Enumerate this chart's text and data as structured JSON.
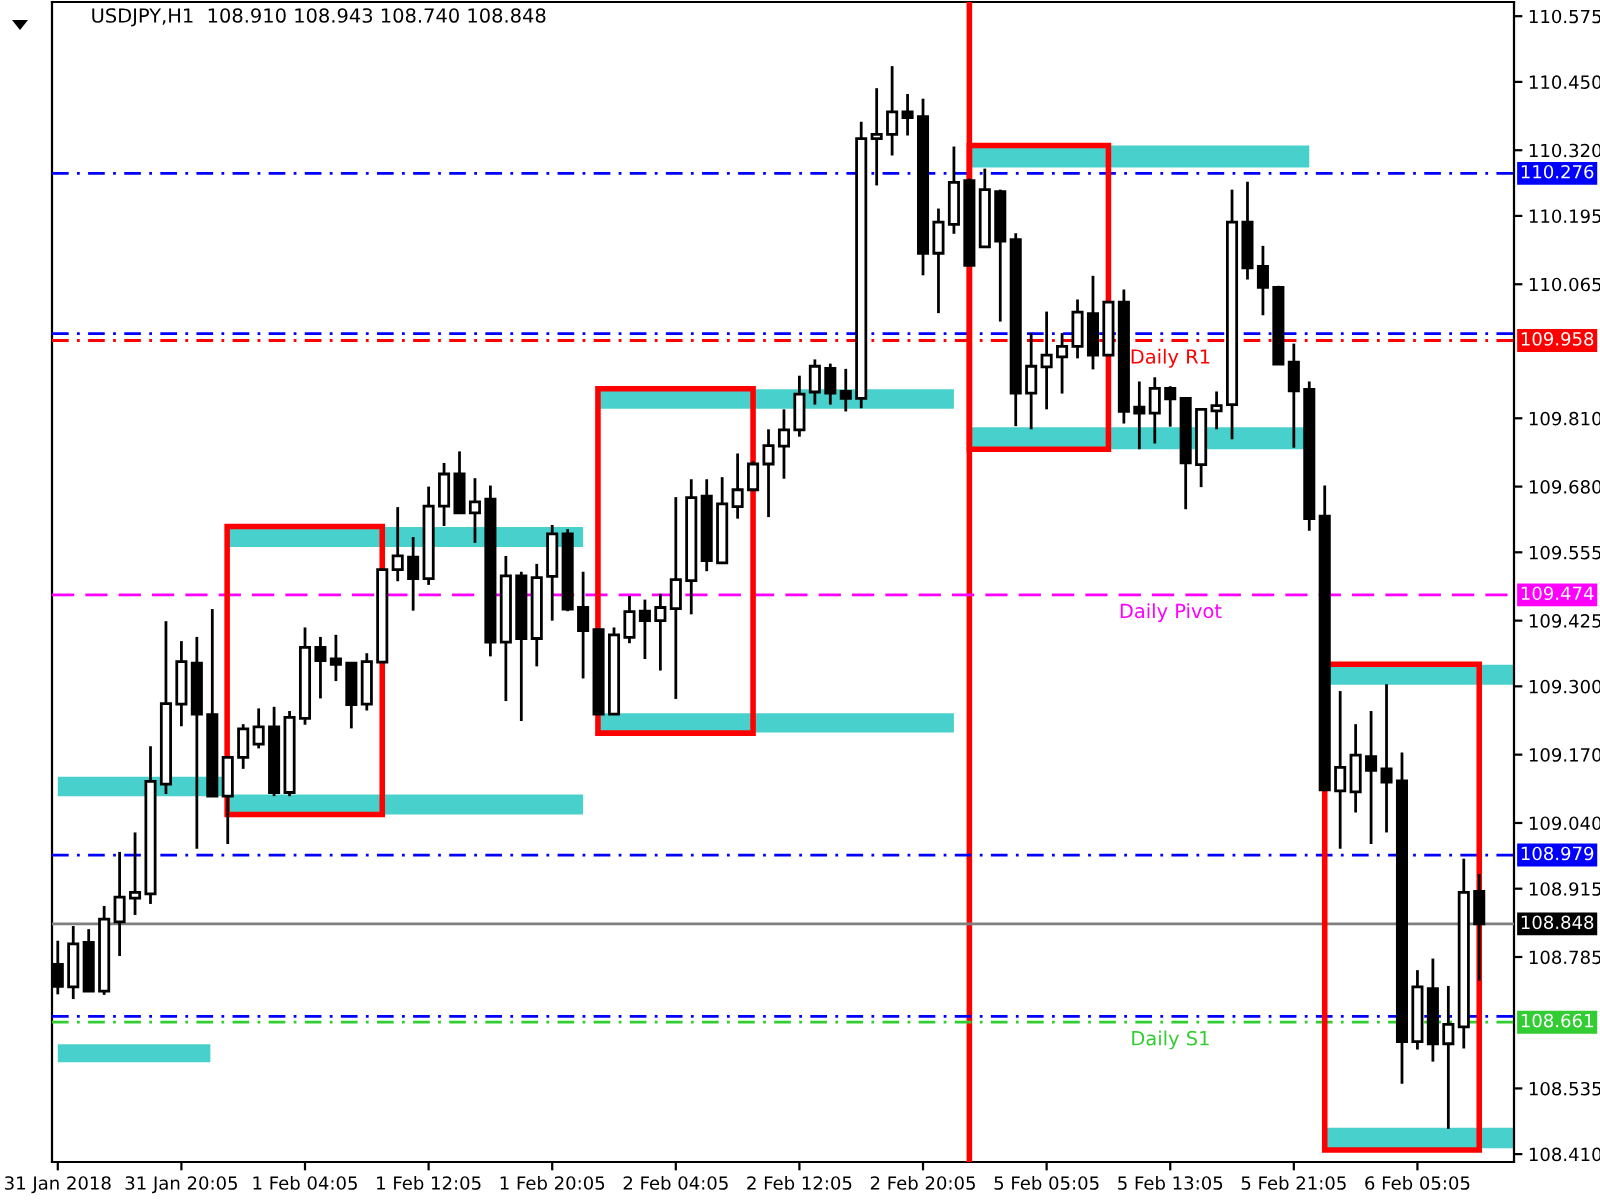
{
  "chart_data": {
    "type": "candlestick",
    "title": "USDJPY,H1  108.910 108.943 108.740 108.848",
    "categories": [
      "31 Jan 2018",
      null,
      null,
      null,
      null,
      null,
      null,
      null,
      "31 Jan 20:05",
      null,
      null,
      null,
      null,
      null,
      null,
      null,
      "1 Feb 04:05",
      null,
      null,
      null,
      null,
      null,
      null,
      null,
      "1 Feb 12:05",
      null,
      null,
      null,
      null,
      null,
      null,
      null,
      "1 Feb 20:05",
      null,
      null,
      null,
      null,
      null,
      null,
      null,
      "2 Feb 04:05",
      null,
      null,
      null,
      null,
      null,
      null,
      null,
      "2 Feb 12:05",
      null,
      null,
      null,
      null,
      null,
      null,
      null,
      "2 Feb 20:05",
      null,
      null,
      null,
      null,
      null,
      null,
      null,
      "5 Feb 05:05",
      null,
      null,
      null,
      null,
      null,
      null,
      null,
      "5 Feb 13:05",
      null,
      null,
      null,
      null,
      null,
      null,
      null,
      "5 Feb 21:05",
      null,
      null,
      null,
      null,
      null,
      null,
      null,
      "6 Feb 05:05",
      null,
      null,
      null,
      null
    ],
    "ohlc": [
      [
        108.771,
        108.816,
        108.714,
        108.729
      ],
      [
        108.728,
        108.844,
        108.705,
        108.81
      ],
      [
        108.813,
        108.838,
        108.72,
        108.72
      ],
      [
        108.72,
        108.882,
        108.713,
        108.857
      ],
      [
        108.852,
        108.985,
        108.787,
        108.899
      ],
      [
        108.897,
        109.022,
        108.865,
        108.908
      ],
      [
        108.905,
        109.186,
        108.886,
        109.119
      ],
      [
        109.114,
        109.424,
        109.095,
        109.267
      ],
      [
        109.266,
        109.386,
        109.224,
        109.347
      ],
      [
        109.344,
        109.394,
        108.991,
        109.247
      ],
      [
        109.246,
        109.447,
        109.091,
        109.091
      ],
      [
        109.091,
        109.165,
        109.0,
        109.165
      ],
      [
        109.165,
        109.228,
        109.143,
        109.219
      ],
      [
        109.19,
        109.258,
        109.182,
        109.223
      ],
      [
        109.223,
        109.261,
        109.091,
        109.098
      ],
      [
        109.098,
        109.253,
        109.091,
        109.241
      ],
      [
        109.239,
        109.412,
        109.227,
        109.374
      ],
      [
        109.374,
        109.394,
        109.277,
        109.349
      ],
      [
        109.352,
        109.398,
        109.31,
        109.342
      ],
      [
        109.344,
        109.344,
        109.22,
        109.265
      ],
      [
        109.266,
        109.363,
        109.254,
        109.347
      ],
      [
        109.346,
        109.522,
        109.346,
        109.522
      ],
      [
        109.522,
        109.641,
        109.5,
        109.548
      ],
      [
        109.546,
        109.584,
        109.444,
        109.505
      ],
      [
        109.505,
        109.68,
        109.493,
        109.643
      ],
      [
        109.643,
        109.725,
        109.605,
        109.704
      ],
      [
        109.704,
        109.747,
        109.63,
        109.63
      ],
      [
        109.63,
        109.696,
        109.573,
        109.651
      ],
      [
        109.656,
        109.682,
        109.357,
        109.384
      ],
      [
        109.384,
        109.548,
        109.272,
        109.51
      ],
      [
        109.51,
        109.518,
        109.234,
        109.391
      ],
      [
        109.391,
        109.533,
        109.338,
        109.507
      ],
      [
        109.509,
        109.607,
        109.425,
        109.59
      ],
      [
        109.59,
        109.599,
        109.443,
        109.447
      ],
      [
        109.45,
        109.518,
        109.315,
        109.406
      ],
      [
        109.408,
        109.408,
        109.247,
        109.247
      ],
      [
        109.247,
        109.412,
        109.247,
        109.398
      ],
      [
        109.393,
        109.472,
        109.382,
        109.442
      ],
      [
        109.443,
        109.465,
        109.352,
        109.425
      ],
      [
        109.425,
        109.476,
        109.33,
        109.45
      ],
      [
        109.448,
        109.66,
        109.276,
        109.503
      ],
      [
        109.501,
        109.694,
        109.437,
        109.659
      ],
      [
        109.662,
        109.694,
        109.519,
        109.539
      ],
      [
        109.535,
        109.698,
        109.535,
        109.647
      ],
      [
        109.642,
        109.743,
        109.619,
        109.674
      ],
      [
        109.674,
        109.728,
        109.674,
        109.723
      ],
      [
        109.723,
        109.789,
        109.622,
        109.758
      ],
      [
        109.757,
        109.827,
        109.695,
        109.788
      ],
      [
        109.788,
        109.891,
        109.775,
        109.856
      ],
      [
        109.86,
        109.922,
        109.836,
        109.909
      ],
      [
        109.905,
        109.914,
        109.836,
        109.858
      ],
      [
        109.861,
        109.904,
        109.823,
        109.848
      ],
      [
        109.848,
        110.374,
        109.829,
        110.342
      ],
      [
        110.342,
        110.438,
        110.253,
        110.35
      ],
      [
        110.35,
        110.48,
        110.31,
        110.393
      ],
      [
        110.393,
        110.427,
        110.348,
        110.382
      ],
      [
        110.384,
        110.418,
        110.082,
        110.124
      ],
      [
        110.124,
        110.209,
        110.01,
        110.183
      ],
      [
        110.179,
        110.327,
        110.161,
        110.259
      ],
      [
        110.262,
        110.266,
        110.101,
        110.101
      ],
      [
        110.136,
        110.285,
        110.136,
        110.245
      ],
      [
        110.241,
        110.245,
        109.994,
        110.147
      ],
      [
        110.15,
        110.162,
        109.795,
        109.858
      ],
      [
        109.858,
        109.972,
        109.789,
        109.909
      ],
      [
        109.908,
        110.013,
        109.827,
        109.93
      ],
      [
        109.927,
        109.972,
        109.857,
        109.947
      ],
      [
        109.947,
        110.036,
        109.924,
        110.012
      ],
      [
        110.009,
        110.081,
        109.903,
        109.93
      ],
      [
        109.93,
        110.031,
        109.93,
        110.031
      ],
      [
        110.031,
        110.055,
        109.8,
        109.823
      ],
      [
        109.831,
        109.88,
        109.751,
        109.82
      ],
      [
        109.82,
        109.888,
        109.762,
        109.867
      ],
      [
        109.867,
        109.871,
        109.794,
        109.847
      ],
      [
        109.848,
        109.848,
        109.637,
        109.725
      ],
      [
        109.722,
        109.827,
        109.679,
        109.827
      ],
      [
        109.824,
        109.861,
        109.789,
        109.834
      ],
      [
        109.836,
        110.245,
        109.77,
        110.183
      ],
      [
        110.183,
        110.26,
        110.074,
        110.096
      ],
      [
        110.099,
        110.138,
        110.006,
        110.059
      ],
      [
        110.059,
        110.062,
        109.913,
        109.913
      ],
      [
        109.917,
        109.952,
        109.754,
        109.862
      ],
      [
        109.865,
        109.88,
        109.596,
        109.619
      ],
      [
        109.624,
        109.682,
        109.103,
        109.103
      ],
      [
        109.101,
        109.291,
        108.991,
        109.146
      ],
      [
        109.099,
        109.228,
        109.06,
        109.169
      ],
      [
        109.166,
        109.253,
        109.0,
        109.14
      ],
      [
        109.143,
        109.304,
        109.022,
        109.118
      ],
      [
        109.12,
        109.174,
        108.544,
        108.624
      ],
      [
        108.624,
        108.76,
        108.609,
        108.728
      ],
      [
        108.725,
        108.782,
        108.586,
        108.62
      ],
      [
        108.62,
        108.73,
        108.458,
        108.657
      ],
      [
        108.652,
        108.972,
        108.611,
        108.908
      ],
      [
        108.91,
        108.943,
        108.74,
        108.848
      ]
    ],
    "ylim": [
      108.395,
      110.602
    ],
    "yticks": [
      110.575,
      {
        "value": 110.45,
        "label": "110.450"
      },
      {
        "value": 110.32,
        "label": "110.320"
      },
      110.195,
      110.065,
      {
        "value": 109.81,
        "label": "109.810"
      },
      {
        "value": 109.68,
        "label": "109.680"
      },
      109.555,
      109.425,
      {
        "value": 109.3,
        "label": "109.300"
      },
      {
        "value": 109.17,
        "label": "109.170"
      },
      {
        "value": 109.04,
        "label": "109.040"
      },
      108.915,
      108.785,
      108.535,
      {
        "value": 108.41,
        "label": "108.410"
      }
    ],
    "ref_lines": [
      {
        "axis": "y",
        "value": 109.971,
        "color": "#0000ff",
        "line_style": "dashdot"
      },
      {
        "axis": "y",
        "value": 108.672,
        "color": "#0000ff",
        "line_style": "dashdot"
      },
      {
        "axis": "y",
        "value": 110.276,
        "label": "110.276",
        "color": "#0000ff",
        "line_style": "dashdot"
      },
      {
        "axis": "y",
        "value": 109.958,
        "label": "109.958",
        "color": "#ff0000",
        "line_style": "dashdot"
      },
      {
        "axis": "y",
        "value": 109.474,
        "label": "109.474",
        "color": "#ff00ff",
        "line_style": "dashed"
      },
      {
        "axis": "y",
        "value": 108.979,
        "label": "108.979",
        "color": "#0000ff",
        "line_style": "dashdot"
      },
      {
        "axis": "y",
        "value": 108.661,
        "label": "108.661",
        "color": "#32cd32",
        "line_style": "dashdot"
      },
      {
        "axis": "y",
        "value": 108.848,
        "label": "108.848",
        "color": "#808080",
        "line_style": "solid"
      }
    ],
    "annotations": [
      {
        "text": "Daily R1",
        "y": 109.958
      },
      {
        "text": "Daily Pivot",
        "y": 109.474
      },
      {
        "text": "Daily S1",
        "y": 108.661
      }
    ],
    "grid": false,
    "legend": false
  }
}
